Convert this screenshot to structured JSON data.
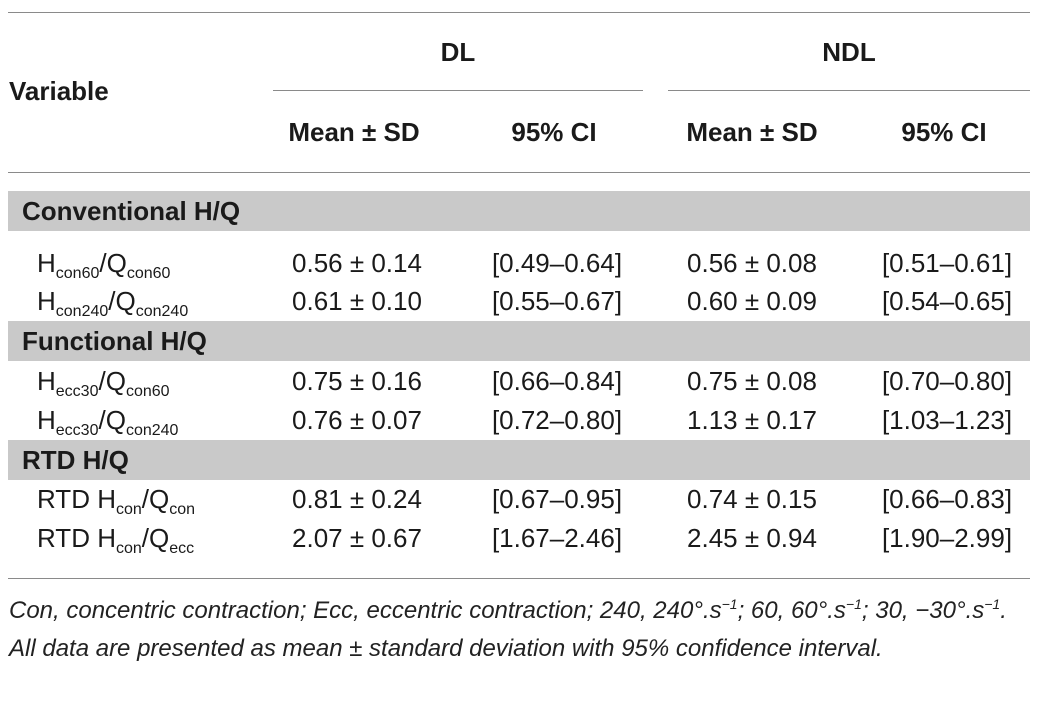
{
  "header": {
    "variable": "Variable",
    "groups": [
      "DL",
      "NDL"
    ],
    "subcolumns": {
      "dl_mean": "Mean ± SD",
      "dl_ci": "95% CI",
      "ndl_mean": "Mean ± SD",
      "ndl_ci": "95% CI"
    }
  },
  "sections": [
    {
      "title": "Conventional H/Q",
      "rows": [
        {
          "h_pre": "",
          "h_sub": "con60",
          "q_sub": "con60",
          "dl_mean": "0.56 ± 0.14",
          "dl_ci": "[0.49–0.64]",
          "ndl_mean": "0.56 ± 0.08",
          "ndl_ci": "[0.51–0.61]"
        },
        {
          "h_pre": "",
          "h_sub": "con240",
          "q_sub": "con240",
          "dl_mean": "0.61 ± 0.10",
          "dl_ci": "[0.55–0.67]",
          "ndl_mean": "0.60 ± 0.09",
          "ndl_ci": "[0.54–0.65]"
        }
      ]
    },
    {
      "title": "Functional H/Q",
      "rows": [
        {
          "h_pre": "",
          "h_sub": "ecc30",
          "q_sub": "con60",
          "dl_mean": "0.75 ± 0.16",
          "dl_ci": "[0.66–0.84]",
          "ndl_mean": "0.75 ± 0.08",
          "ndl_ci": "[0.70–0.80]"
        },
        {
          "h_pre": "",
          "h_sub": "ecc30",
          "q_sub": "con240",
          "dl_mean": "0.76 ± 0.07",
          "dl_ci": "[0.72–0.80]",
          "ndl_mean": "1.13 ± 0.17",
          "ndl_ci": "[1.03–1.23]"
        }
      ]
    },
    {
      "title": "RTD H/Q",
      "rows": [
        {
          "h_pre": "RTD ",
          "h_sub": "con",
          "q_sub": "con",
          "dl_mean": "0.81 ± 0.24",
          "dl_ci": "[0.67–0.95]",
          "ndl_mean": "0.74 ± 0.15",
          "ndl_ci": "[0.66–0.83]"
        },
        {
          "h_pre": "RTD ",
          "h_sub": "con",
          "q_sub": "ecc",
          "dl_mean": "2.07 ± 0.67",
          "dl_ci": "[1.67–2.46]",
          "ndl_mean": "2.45 ± 0.94",
          "ndl_ci": "[1.90–2.99]"
        }
      ]
    }
  ],
  "footnote": {
    "part1": "Con, concentric contraction; Ecc, eccentric contraction; 240, 240°.s",
    "sup1": "−1",
    "part2": "; 60, 60°.s",
    "sup2": "−1",
    "part3": "; 30, −30°.s",
    "sup3": "−1",
    "part4": ". All data are presented as mean ± standard deviation with 95% confidence interval."
  }
}
